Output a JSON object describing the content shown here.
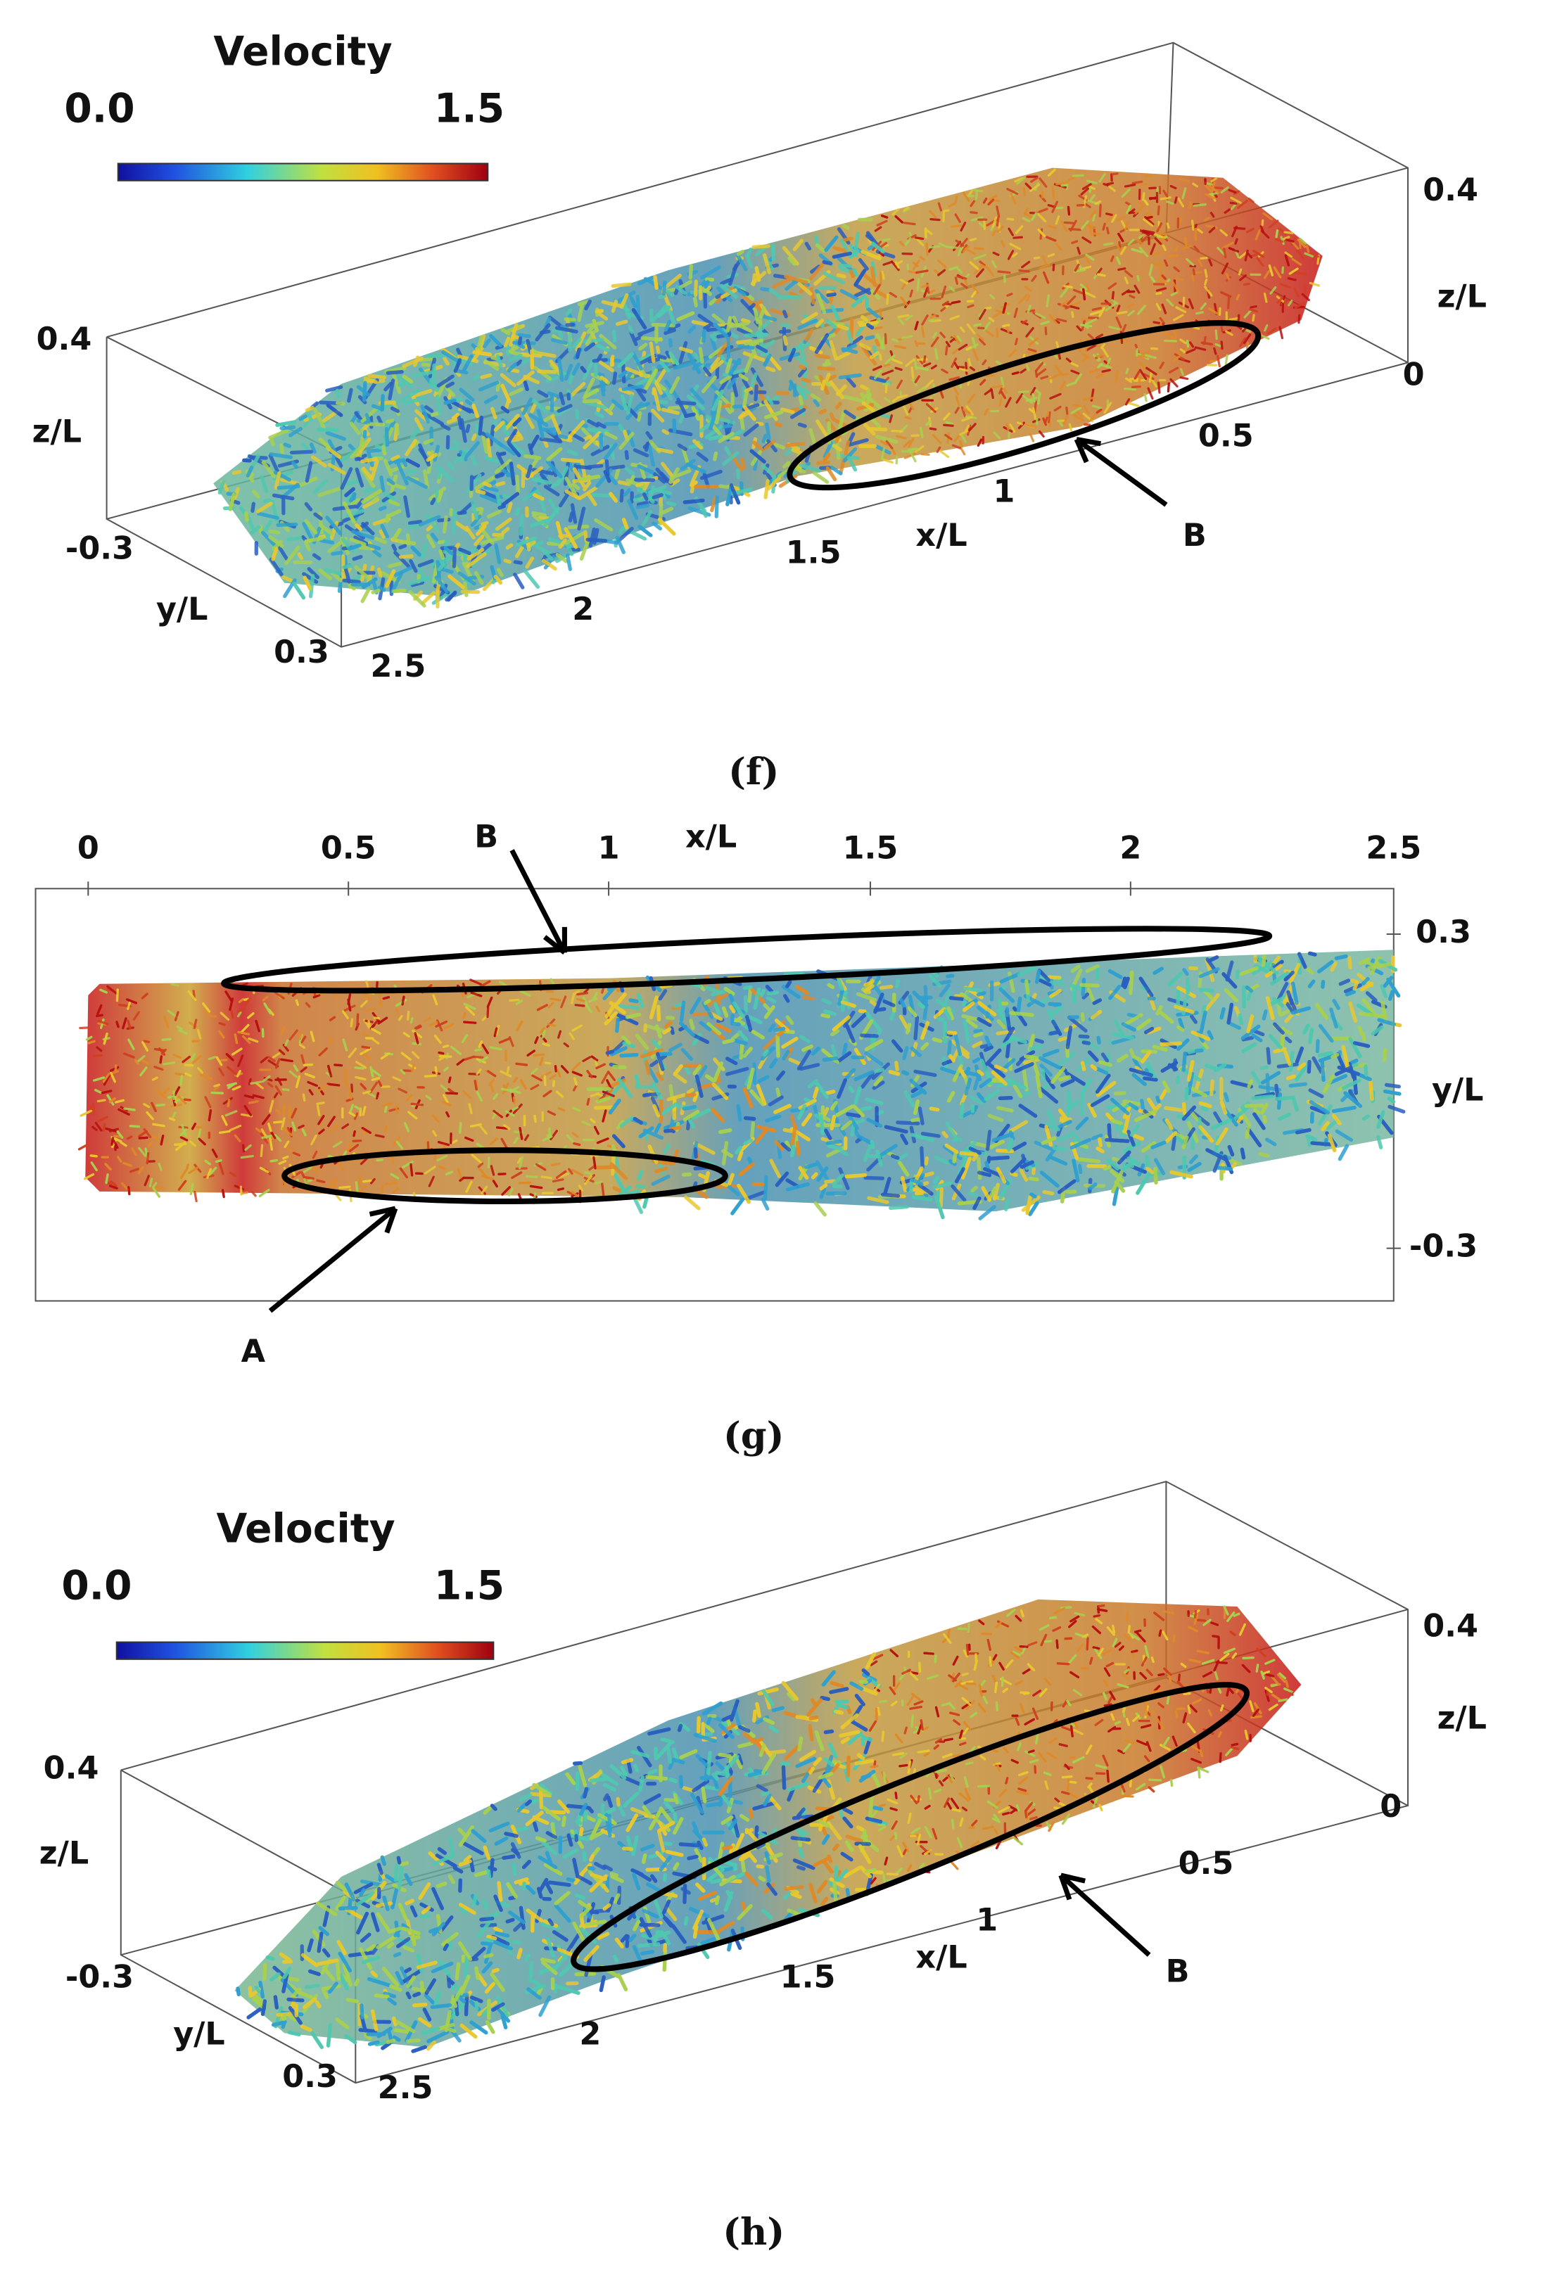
{
  "panels": [
    {
      "caption": "(f)",
      "colorbar": {
        "title": "Velocity",
        "min": "0.0",
        "max": "1.5"
      },
      "axes": {
        "x_label": "x/L",
        "x_ticks": [
          "2.5",
          "2",
          "1.5",
          "1",
          "0.5",
          "0"
        ],
        "y_label": "y/L",
        "y_ticks": [
          "-0.3",
          "0.3"
        ],
        "z_labels": [
          "z/L",
          "z/L"
        ],
        "z_ticks": [
          "0.4",
          "0.4",
          "0"
        ]
      },
      "annotations": [
        "B"
      ]
    },
    {
      "caption": "(g)",
      "axes": {
        "x_label": "x/L",
        "x_ticks": [
          "0",
          "0.5",
          "1",
          "1.5",
          "2",
          "2.5"
        ],
        "y_label": "y/L",
        "y_ticks": [
          "0.3",
          "-0.3"
        ]
      },
      "annotations": [
        "B",
        "A"
      ]
    },
    {
      "caption": "(h)",
      "colorbar": {
        "title": "Velocity",
        "min": "0.0",
        "max": "1.5"
      },
      "axes": {
        "x_label": "x/L",
        "x_ticks": [
          "2.5",
          "2",
          "1.5",
          "1",
          "0.5",
          "0"
        ],
        "y_label": "y/L",
        "y_ticks": [
          "-0.3",
          "0.3"
        ],
        "z_labels": [
          "z/L",
          "z/L"
        ],
        "z_ticks": [
          "0.4",
          "0.4",
          "0"
        ]
      },
      "annotations": [
        "B"
      ]
    }
  ]
}
